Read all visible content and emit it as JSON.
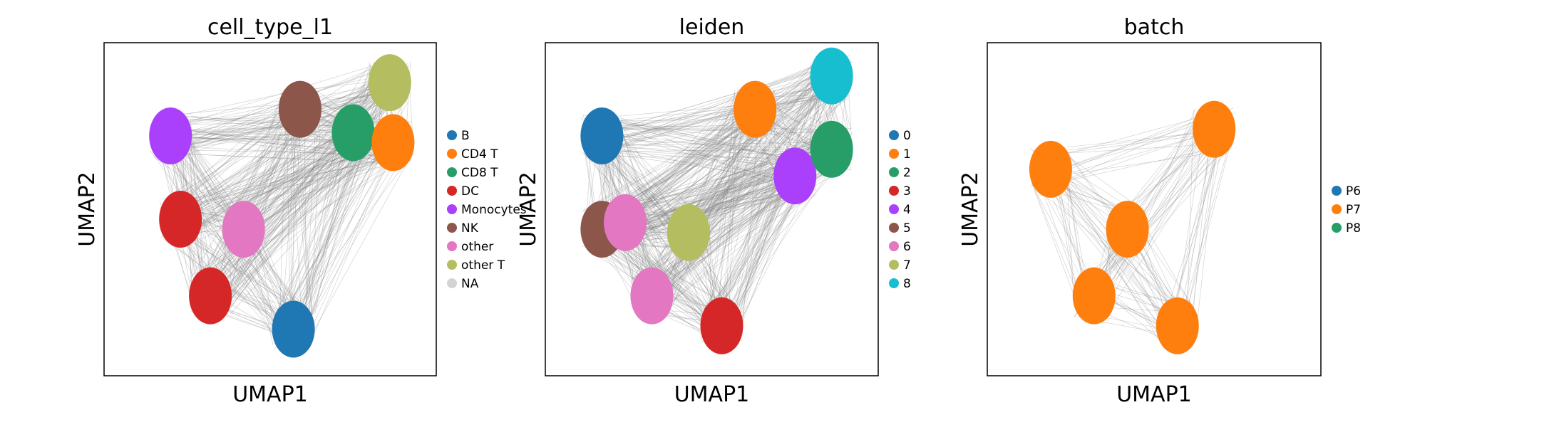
{
  "chart_data": [
    {
      "type": "scatter",
      "title": "cell_type_l1",
      "xlabel": "UMAP1",
      "ylabel": "UMAP2",
      "grid": false,
      "ticks": false,
      "legend_placement": "right",
      "legend": [
        {
          "label": "B",
          "color": "#1f77b4"
        },
        {
          "label": "CD4 T",
          "color": "#ff7f0e"
        },
        {
          "label": "CD8 T",
          "color": "#279e68"
        },
        {
          "label": "DC",
          "color": "#d62728"
        },
        {
          "label": "Monocytes",
          "color": "#aa40fc"
        },
        {
          "label": "NK",
          "color": "#8c564b"
        },
        {
          "label": "other",
          "color": "#e377c2"
        },
        {
          "label": "other T",
          "color": "#b5bd61"
        },
        {
          "label": "NA",
          "color": "#d3d3d3"
        }
      ],
      "clusters": [
        {
          "label": "Monocytes",
          "x": 0.2,
          "y": 0.72
        },
        {
          "label": "DC",
          "x": 0.23,
          "y": 0.47
        },
        {
          "label": "NK",
          "x": 0.59,
          "y": 0.8
        },
        {
          "label": "CD8 T",
          "x": 0.75,
          "y": 0.73
        },
        {
          "label": "CD4 T",
          "x": 0.87,
          "y": 0.7
        },
        {
          "label": "other T",
          "x": 0.86,
          "y": 0.88
        },
        {
          "label": "other",
          "x": 0.42,
          "y": 0.44
        },
        {
          "label": "B",
          "x": 0.57,
          "y": 0.14
        },
        {
          "label": "DC",
          "x": 0.32,
          "y": 0.24
        }
      ]
    },
    {
      "type": "scatter",
      "title": "leiden",
      "xlabel": "UMAP1",
      "ylabel": "UMAP2",
      "grid": false,
      "ticks": false,
      "legend_placement": "right",
      "legend": [
        {
          "label": "0",
          "color": "#1f77b4"
        },
        {
          "label": "1",
          "color": "#ff7f0e"
        },
        {
          "label": "2",
          "color": "#279e68"
        },
        {
          "label": "3",
          "color": "#d62728"
        },
        {
          "label": "4",
          "color": "#aa40fc"
        },
        {
          "label": "5",
          "color": "#8c564b"
        },
        {
          "label": "6",
          "color": "#e377c2"
        },
        {
          "label": "7",
          "color": "#b5bd61"
        },
        {
          "label": "8",
          "color": "#17becf"
        }
      ],
      "clusters": [
        {
          "label": "0",
          "x": 0.17,
          "y": 0.72
        },
        {
          "label": "5",
          "x": 0.17,
          "y": 0.44
        },
        {
          "label": "6",
          "x": 0.24,
          "y": 0.46
        },
        {
          "label": "7",
          "x": 0.43,
          "y": 0.43
        },
        {
          "label": "1",
          "x": 0.63,
          "y": 0.8
        },
        {
          "label": "4",
          "x": 0.75,
          "y": 0.6
        },
        {
          "label": "2",
          "x": 0.86,
          "y": 0.68
        },
        {
          "label": "8",
          "x": 0.86,
          "y": 0.9
        },
        {
          "label": "3",
          "x": 0.53,
          "y": 0.15
        },
        {
          "label": "6",
          "x": 0.32,
          "y": 0.24
        }
      ]
    },
    {
      "type": "scatter",
      "title": "batch",
      "xlabel": "UMAP1",
      "ylabel": "UMAP2",
      "grid": false,
      "ticks": false,
      "legend_placement": "right",
      "legend": [
        {
          "label": "P6",
          "color": "#1f77b4"
        },
        {
          "label": "P7",
          "color": "#ff7f0e"
        },
        {
          "label": "P8",
          "color": "#279e68"
        }
      ],
      "clusters": [
        {
          "label": "P7",
          "x": 0.19,
          "y": 0.62
        },
        {
          "label": "P7",
          "x": 0.68,
          "y": 0.74
        },
        {
          "label": "P7",
          "x": 0.42,
          "y": 0.44
        },
        {
          "label": "P7",
          "x": 0.57,
          "y": 0.15
        },
        {
          "label": "P7",
          "x": 0.32,
          "y": 0.24
        }
      ]
    }
  ]
}
